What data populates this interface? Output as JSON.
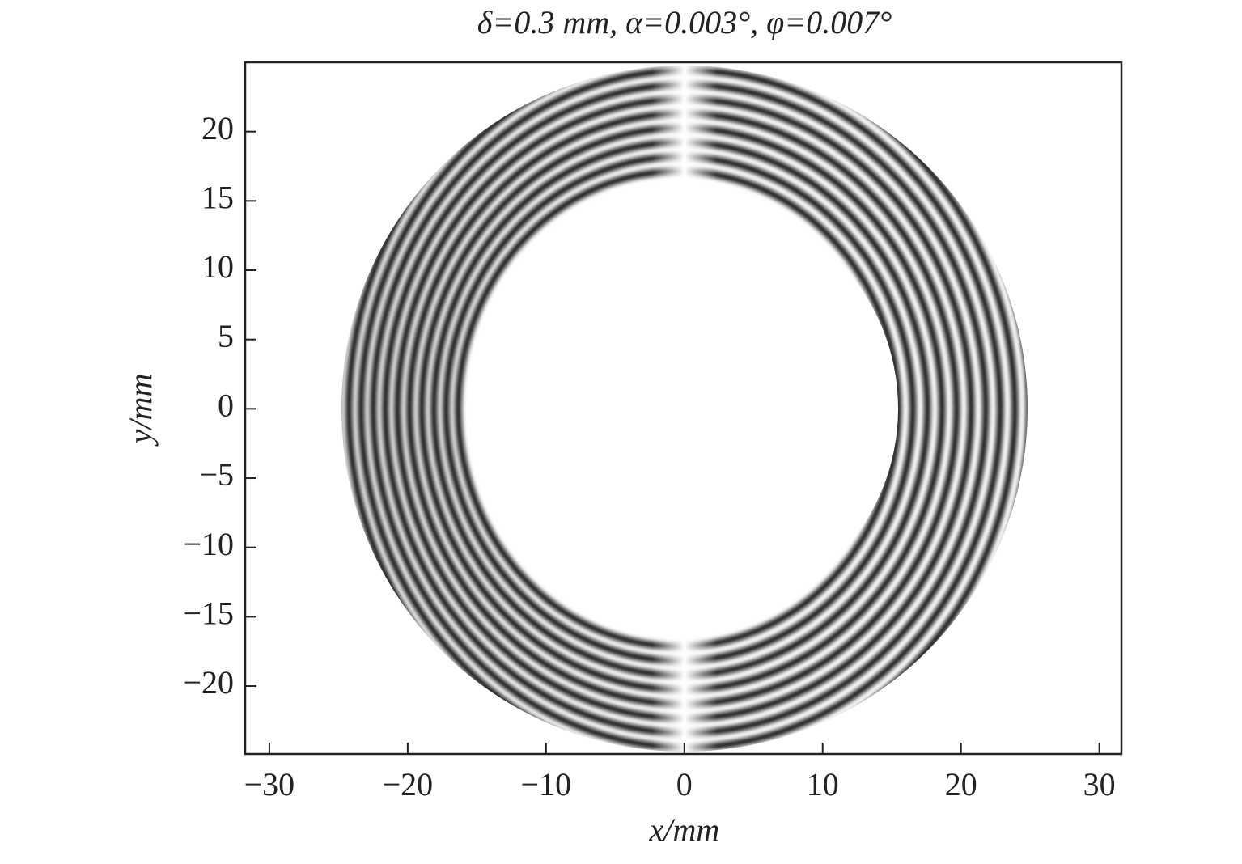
{
  "chart_data": {
    "type": "image",
    "title": "δ=0.3 mm, α=0.003°, φ=0.007°",
    "x_label": "x/mm",
    "y_label": "y/mm",
    "xlim": [
      -31.75,
      31.6
    ],
    "ylim": [
      -24.9,
      25
    ],
    "xticks": [
      {
        "value": -30,
        "label": "−30"
      },
      {
        "value": -20,
        "label": "−20"
      },
      {
        "value": -10,
        "label": "−10"
      },
      0,
      10,
      20,
      30
    ],
    "yticks": [
      {
        "value": -20,
        "label": "−20"
      },
      {
        "value": -15,
        "label": "−15"
      },
      {
        "value": -10,
        "label": "−10"
      },
      {
        "value": -5,
        "label": "−5"
      },
      0,
      5,
      10,
      15,
      20
    ]
  }
}
